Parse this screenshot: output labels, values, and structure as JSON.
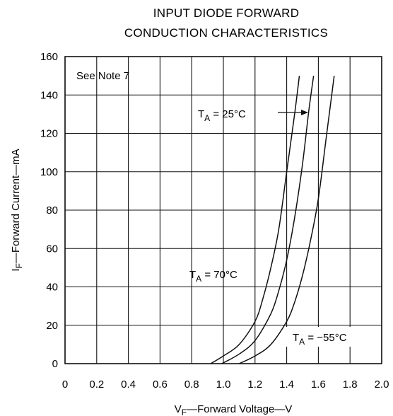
{
  "chart_data": {
    "type": "line",
    "title_lines": [
      "INPUT DIODE FORWARD",
      "CONDUCTION CHARACTERISTICS"
    ],
    "xlabel": {
      "main": "V",
      "sub": "F",
      "rest": "—Forward Voltage—V"
    },
    "ylabel": {
      "main": "I",
      "sub": "F",
      "rest": "—Forward Current—mA"
    },
    "xlim": [
      0,
      2.0
    ],
    "ylim": [
      0,
      160
    ],
    "x_ticks": [
      "0",
      "0.2",
      "0.4",
      "0.6",
      "0.8",
      "1.0",
      "1.2",
      "1.4",
      "1.6",
      "1.8",
      "2.0"
    ],
    "y_ticks": [
      "0",
      "20",
      "40",
      "60",
      "80",
      "100",
      "120",
      "140",
      "160"
    ],
    "grid": true,
    "note": "See Note 7",
    "series": [
      {
        "name": "T_A = 70°C",
        "x": [
          0.92,
          1.0,
          1.1,
          1.2,
          1.25,
          1.3,
          1.35,
          1.4,
          1.45,
          1.48
        ],
        "y": [
          0,
          4,
          10,
          22,
          34,
          50,
          70,
          100,
          130,
          150
        ]
      },
      {
        "name": "T_A = 25°C",
        "x": [
          0.99,
          1.1,
          1.2,
          1.3,
          1.35,
          1.4,
          1.45,
          1.5,
          1.54,
          1.57
        ],
        "y": [
          0,
          5,
          12,
          26,
          38,
          54,
          76,
          104,
          132,
          150
        ]
      },
      {
        "name": "T_A = −55°C",
        "x": [
          1.1,
          1.2,
          1.3,
          1.4,
          1.45,
          1.5,
          1.55,
          1.6,
          1.65,
          1.7
        ],
        "y": [
          0,
          4,
          10,
          22,
          32,
          46,
          64,
          86,
          118,
          150
        ]
      }
    ],
    "annotations": {
      "t25": {
        "a": "T",
        "sub": "A",
        "b": " = 25°C"
      },
      "t70": {
        "a": "T",
        "sub": "A",
        "b": " = 70°C"
      },
      "tm55": {
        "a": "T",
        "sub": "A",
        "b": " = −55°C"
      }
    }
  }
}
